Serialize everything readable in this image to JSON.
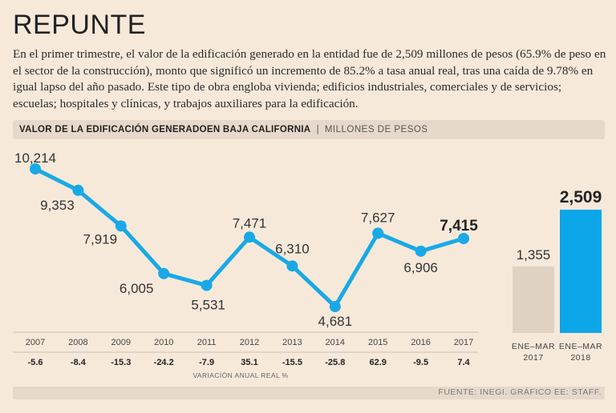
{
  "title": "REPUNTE",
  "intro": "En el primer trimestre, el valor de la edificación generado en la entidad fue de 2,509 millones de pesos (65.9% de peso en el sector de la construcción), monto que significó un incremento de 85.2% a tasa anual real, tras una caída de 9.78% en igual lapso del año pasado. Este tipo de obra engloba vivienda; edificios industriales, comerciales y de servicios; escuelas; hospitales y clínicas, y trabajos auxiliares para la edificación.",
  "chart_header": {
    "main": "VALOR DE LA EDIFICACIÓN GENERADOEN BAJA CALIFORNIA",
    "separator": "|",
    "unit": "MILLONES DE PESOS"
  },
  "source": "FUENTE: INEGI. GRÁFICO EE: STAFF.",
  "colors": {
    "line": "#19a9e6",
    "bar_prev": "#dfd2c3",
    "bar_curr": "#0da6e8",
    "background": "#f7e9da",
    "header_bg": "#e6d9cb"
  },
  "chart_data": [
    {
      "type": "line",
      "title": "VALOR DE LA EDIFICACIÓN GENERADOEN BAJA CALIFORNIA",
      "ylabel": "MILLONES DE PESOS",
      "x": [
        "2007",
        "2008",
        "2009",
        "2010",
        "2011",
        "2012",
        "2013",
        "2014",
        "2015",
        "2016",
        "2017"
      ],
      "values": [
        10214,
        9353,
        7919,
        6005,
        5531,
        7471,
        6310,
        4681,
        7627,
        6906,
        7415
      ],
      "value_labels": [
        "10,214",
        "9,353",
        "7,919",
        "6,005",
        "5,531",
        "7,471",
        "6,310",
        "4,681",
        "7,627",
        "6,906",
        "7,415"
      ],
      "variation_label": "VARIACIÓN ANUAL REAL %",
      "variation": [
        "-5.6",
        "-8.4",
        "-15.3",
        "-24.2",
        "-7.9",
        "35.1",
        "-15.5",
        "-25.8",
        "62.9",
        "-9.5",
        "7.4"
      ],
      "ylim": [
        4681,
        10214
      ]
    },
    {
      "type": "bar",
      "categories": [
        [
          "ENE–MAR",
          "2017"
        ],
        [
          "ENE–MAR",
          "2018"
        ]
      ],
      "values": [
        1355,
        2509
      ],
      "value_labels": [
        "1,355",
        "2,509"
      ],
      "ylim": [
        0,
        2509
      ]
    }
  ]
}
